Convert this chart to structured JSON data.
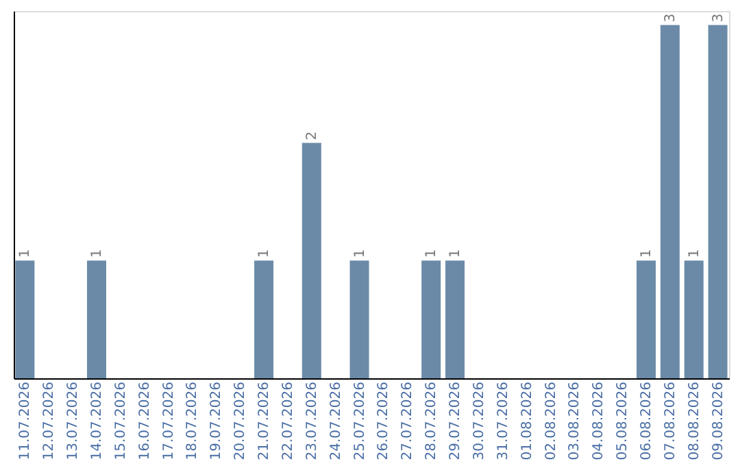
{
  "chart_data": {
    "type": "bar",
    "categories": [
      "11.07.2026",
      "12.07.2026",
      "13.07.2026",
      "14.07.2026",
      "15.07.2026",
      "16.07.2026",
      "17.07.2026",
      "18.07.2026",
      "19.07.2026",
      "20.07.2026",
      "21.07.2026",
      "22.07.2026",
      "23.07.2026",
      "24.07.2026",
      "25.07.2026",
      "26.07.2026",
      "27.07.2026",
      "28.07.2026",
      "29.07.2026",
      "30.07.2026",
      "31.07.2026",
      "01.08.2026",
      "02.08.2026",
      "03.08.2026",
      "04.08.2026",
      "05.08.2026",
      "06.08.2026",
      "07.08.2026",
      "08.08.2026",
      "09.08.2026"
    ],
    "values": [
      1,
      0,
      0,
      1,
      0,
      0,
      0,
      0,
      0,
      0,
      1,
      0,
      2,
      0,
      1,
      0,
      0,
      1,
      1,
      0,
      0,
      0,
      0,
      0,
      0,
      0,
      1,
      3,
      1,
      3
    ],
    "value_labels": [
      "1",
      null,
      null,
      "1",
      null,
      null,
      null,
      null,
      null,
      null,
      "1",
      null,
      "2",
      null,
      "1",
      null,
      null,
      "1",
      "1",
      null,
      null,
      null,
      null,
      null,
      null,
      null,
      "1",
      "3",
      "1",
      "3"
    ],
    "color": "#6b8aa8",
    "ylim": [
      0,
      3.12
    ],
    "tick_labels": "x",
    "grid": false
  }
}
